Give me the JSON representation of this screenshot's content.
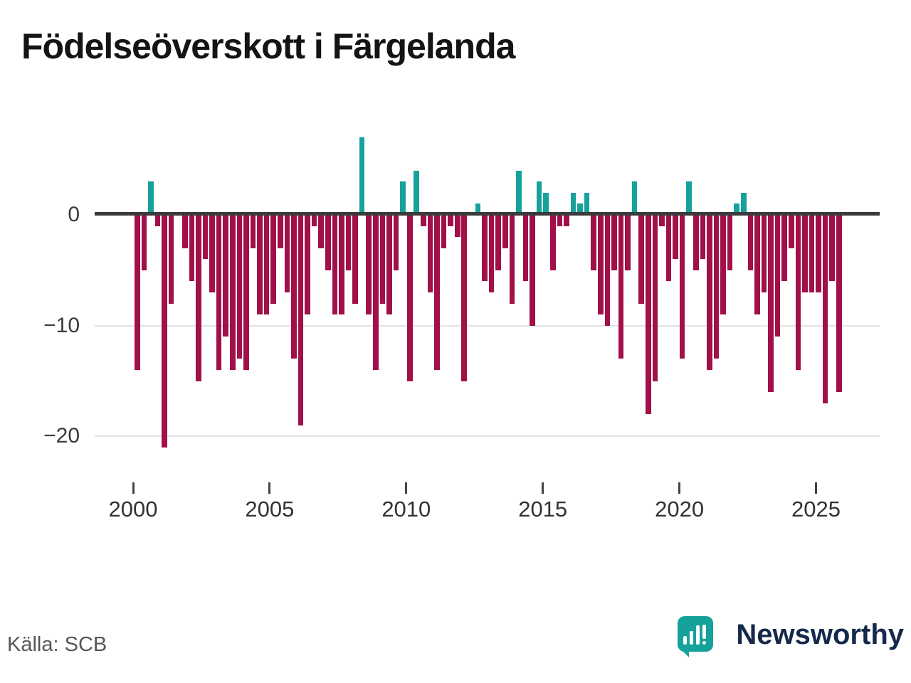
{
  "title": "Födelseöverskott i Färgelanda",
  "source": "Källa: SCB",
  "brand": {
    "name": "Newsworthy"
  },
  "colors": {
    "positive": "#15a29a",
    "negative": "#a11048",
    "axis": "#3b3b3b",
    "grid": "#e2e2e2",
    "tick_label": "#333333",
    "brand_navy": "#14294b",
    "brand_teal": "#15a29a"
  },
  "chart_data": {
    "type": "bar",
    "title": "Födelseöverskott i Färgelanda",
    "frequency": "quarterly",
    "start_year": 2000,
    "values": [
      -14,
      -5,
      3,
      -1,
      -21,
      -8,
      0,
      -3,
      -6,
      -15,
      -4,
      -7,
      -14,
      -11,
      -14,
      -13,
      -14,
      -3,
      -9,
      -9,
      -8,
      -3,
      -7,
      -13,
      -19,
      -9,
      -1,
      -3,
      -5,
      -9,
      -9,
      -5,
      -8,
      7,
      -9,
      -14,
      -8,
      -9,
      -5,
      3,
      -15,
      4,
      -1,
      -7,
      -14,
      -3,
      -1,
      -2,
      -15,
      0,
      1,
      -6,
      -7,
      -5,
      -3,
      -8,
      4,
      -6,
      -10,
      3,
      2,
      -5,
      -1,
      -1,
      2,
      1,
      2,
      -5,
      -9,
      -10,
      -5,
      -13,
      -5,
      3,
      -8,
      -18,
      -15,
      -1,
      -6,
      -4,
      -13,
      3,
      -5,
      -4,
      -14,
      -13,
      -9,
      -5,
      1,
      2,
      -5,
      -9,
      -7,
      -16,
      -11,
      -6,
      -3,
      -14,
      -7,
      -7,
      -7,
      -17,
      -6,
      -16
    ],
    "yticks": [
      0,
      -10,
      -20
    ],
    "ytick_labels": [
      "0",
      "−10",
      "−20"
    ],
    "xticks": [
      2000,
      2005,
      2010,
      2015,
      2020,
      2025
    ],
    "ylim": [
      -22.5,
      8.5
    ],
    "grid": "horizontal",
    "legend": "none"
  }
}
